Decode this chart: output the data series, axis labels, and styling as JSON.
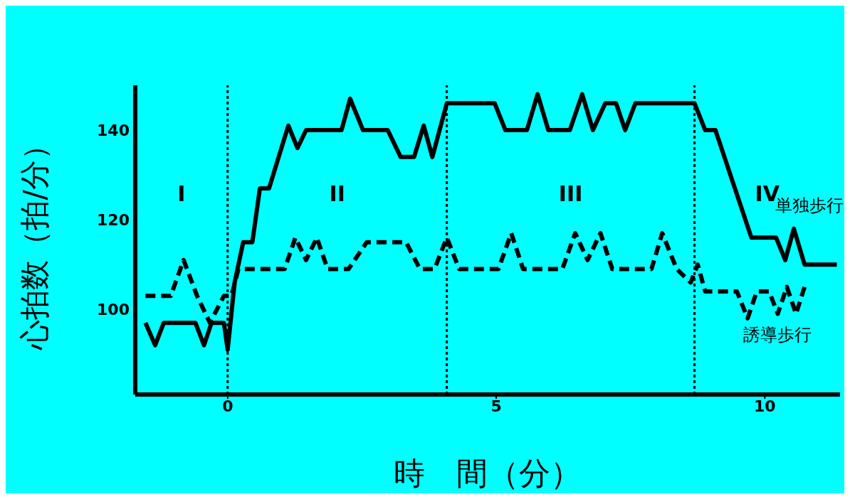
{
  "chart_data": {
    "type": "line",
    "xlabel": "時　間（分）",
    "ylabel": "心拍数（拍/分）",
    "xlim": [
      -1.72,
      11.4
    ],
    "xticks": [
      0,
      5,
      10
    ],
    "ylim": [
      81,
      150
    ],
    "yticks": [
      100,
      120,
      140
    ],
    "marker": "none",
    "series": [
      {
        "name": "単独歩行",
        "color": "#000000",
        "line_style": "solid",
        "x": [
          -1.53,
          -1.35,
          -1.19,
          -0.6,
          -0.44,
          -0.3,
          -0.07,
          0,
          0.13,
          0.29,
          0.46,
          0.6,
          0.77,
          1.13,
          1.3,
          1.46,
          2.12,
          2.28,
          2.52,
          2.98,
          3.22,
          3.47,
          3.65,
          3.81,
          4.08,
          4.97,
          5.17,
          5.57,
          5.77,
          5.97,
          6.37,
          6.6,
          6.8,
          7.03,
          7.23,
          7.4,
          7.59,
          8.69,
          8.89,
          9.08,
          9.75,
          10.21,
          10.38,
          10.54,
          10.74,
          11.34
        ],
        "values": [
          97,
          92,
          97,
          97,
          92,
          97,
          97,
          91,
          106,
          115,
          115,
          127,
          127,
          141,
          136,
          140,
          140,
          147,
          140,
          140,
          134,
          134,
          141,
          134,
          146,
          146,
          140,
          140,
          148,
          140,
          140,
          148,
          140,
          146,
          146,
          140,
          146,
          146,
          140,
          140,
          116,
          116,
          111,
          118,
          110,
          110
        ]
      },
      {
        "name": "誘導歩行",
        "color": "#000000",
        "line_style": "dashed",
        "x": [
          -1.53,
          -1.06,
          -0.82,
          -0.57,
          -0.33,
          -0.07,
          0.07,
          0.2,
          1.06,
          1.26,
          1.46,
          1.66,
          1.86,
          2.25,
          2.59,
          3.32,
          3.58,
          3.85,
          4.08,
          4.31,
          5.04,
          5.28,
          5.5,
          6.23,
          6.47,
          6.7,
          6.94,
          7.16,
          7.89,
          8.09,
          8.36,
          8.62,
          8.75,
          8.89,
          9.48,
          9.68,
          9.85,
          10.08,
          10.24,
          10.41,
          10.58,
          10.74
        ],
        "values": [
          103,
          103,
          111,
          103,
          97,
          103,
          103,
          109,
          109,
          116,
          111,
          116,
          109,
          109,
          115,
          115,
          109,
          109,
          116,
          109,
          109,
          117,
          109,
          109,
          117,
          111,
          117,
          109,
          109,
          117,
          109,
          106,
          110,
          104,
          104,
          98,
          104,
          104,
          99,
          105,
          99,
          105
        ]
      }
    ],
    "ref_lines": [
      {
        "axis": "x",
        "value": 0,
        "color": "#000000",
        "line_style": "dotted"
      },
      {
        "axis": "x",
        "value": 4.08,
        "color": "#000000",
        "line_style": "dotted"
      },
      {
        "axis": "x",
        "value": 8.69,
        "color": "#000000",
        "line_style": "dotted"
      }
    ],
    "annotations": [
      "I",
      "II",
      "III",
      "IV"
    ]
  }
}
